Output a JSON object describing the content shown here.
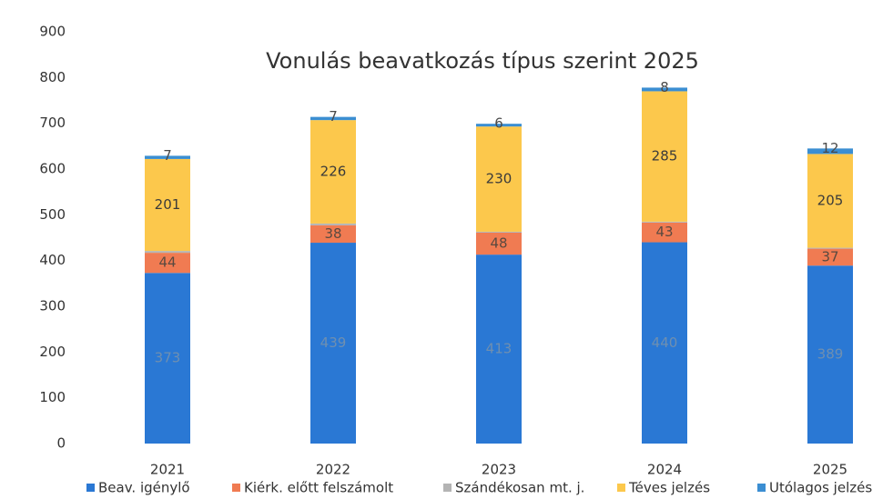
{
  "chart_data": {
    "type": "stacked_bar",
    "title": "Vonulás beavatkozás típus szerint 2025",
    "categories": [
      "2021",
      "2022",
      "2023",
      "2024",
      "2025"
    ],
    "series": [
      {
        "name": "Beav. igénylő",
        "color": "#2a78d4",
        "values": [
          373,
          439,
          413,
          440,
          389
        ],
        "label_color": "#6f8fb0"
      },
      {
        "name": "Kiérk. előtt felszámolt",
        "color": "#f07b52",
        "values": [
          44,
          38,
          48,
          43,
          37
        ],
        "label_color": "#5a4a40"
      },
      {
        "name": "Szándékosan mt. j.",
        "color": "#b4b4b4",
        "values": [
          4,
          4,
          2,
          2,
          2
        ],
        "data_labels": false
      },
      {
        "name": "Téves jelzés",
        "color": "#fcc84c",
        "values": [
          201,
          226,
          230,
          285,
          205
        ],
        "label_color": "#3a3a3a"
      },
      {
        "name": "Utólagos jelzés",
        "color": "#3b8ed2",
        "values": [
          7,
          7,
          6,
          8,
          12
        ],
        "label_color": "#4a4a4a"
      }
    ],
    "ylim": [
      0,
      900
    ],
    "yticks": [
      0,
      100,
      200,
      300,
      400,
      500,
      600,
      700,
      800,
      900
    ],
    "grid": false,
    "legend": "bottom"
  }
}
